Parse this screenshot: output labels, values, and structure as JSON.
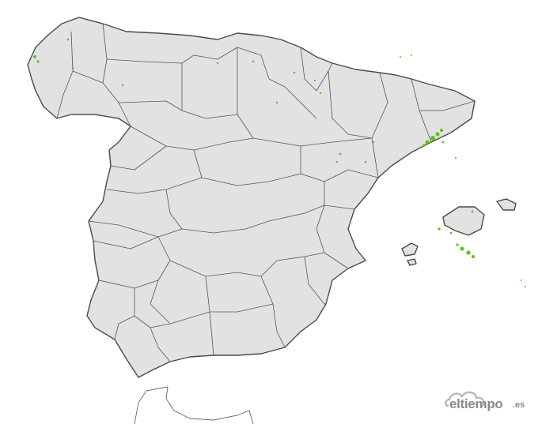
{
  "map": {
    "land_color": "#e2e2e2",
    "border_color": "#4a4a4a",
    "precipitation_color": "#5cc21f",
    "background_color": "#ffffff"
  },
  "brand": {
    "name": "eltiempo",
    "suffix": ".es",
    "icon": "cloud-logo-icon",
    "color": "#8a8a8a"
  }
}
